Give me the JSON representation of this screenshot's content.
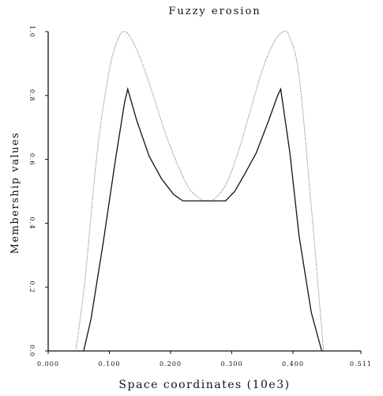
{
  "chart_data": {
    "type": "line",
    "title": "Fuzzy erosion",
    "xlabel": "Space coordinates (10e3)",
    "ylabel": "Membership values",
    "xlim": [
      0,
      0.511
    ],
    "ylim": [
      0,
      1
    ],
    "x_ticks": [
      "0.000",
      "0.100",
      "0.200",
      "0.300",
      "0.400",
      "0.511"
    ],
    "x_tick_values": [
      0,
      0.1,
      0.2,
      0.3,
      0.4,
      0.511
    ],
    "y_ticks": [
      "0.0",
      "0.2",
      "0.4",
      "0.6",
      "0.8",
      "1.0"
    ],
    "y_tick_values": [
      0,
      0.2,
      0.4,
      0.6,
      0.8,
      1.0
    ],
    "grid": false,
    "series": [
      {
        "style": "dotted",
        "color": "#555555",
        "x": [
          0.045,
          0.06,
          0.08,
          0.1,
          0.115,
          0.125,
          0.135,
          0.15,
          0.17,
          0.19,
          0.21,
          0.23,
          0.25,
          0.258,
          0.27,
          0.29,
          0.31,
          0.33,
          0.35,
          0.37,
          0.385,
          0.395,
          0.41,
          0.43,
          0.45
        ],
        "y": [
          0.0,
          0.22,
          0.62,
          0.88,
          0.98,
          1.0,
          0.98,
          0.92,
          0.81,
          0.69,
          0.59,
          0.51,
          0.474,
          0.47,
          0.474,
          0.52,
          0.62,
          0.75,
          0.88,
          0.97,
          1.0,
          0.98,
          0.86,
          0.45,
          0.0
        ]
      },
      {
        "style": "solid",
        "color": "#111111",
        "x": [
          0.058,
          0.07,
          0.09,
          0.11,
          0.125,
          0.13,
          0.145,
          0.165,
          0.185,
          0.205,
          0.22,
          0.29,
          0.305,
          0.32,
          0.34,
          0.36,
          0.375,
          0.38,
          0.395,
          0.41,
          0.43,
          0.447
        ],
        "y": [
          0.0,
          0.1,
          0.34,
          0.6,
          0.78,
          0.82,
          0.72,
          0.61,
          0.54,
          0.49,
          0.47,
          0.47,
          0.5,
          0.55,
          0.62,
          0.72,
          0.8,
          0.82,
          0.62,
          0.36,
          0.12,
          0.0
        ]
      }
    ]
  }
}
